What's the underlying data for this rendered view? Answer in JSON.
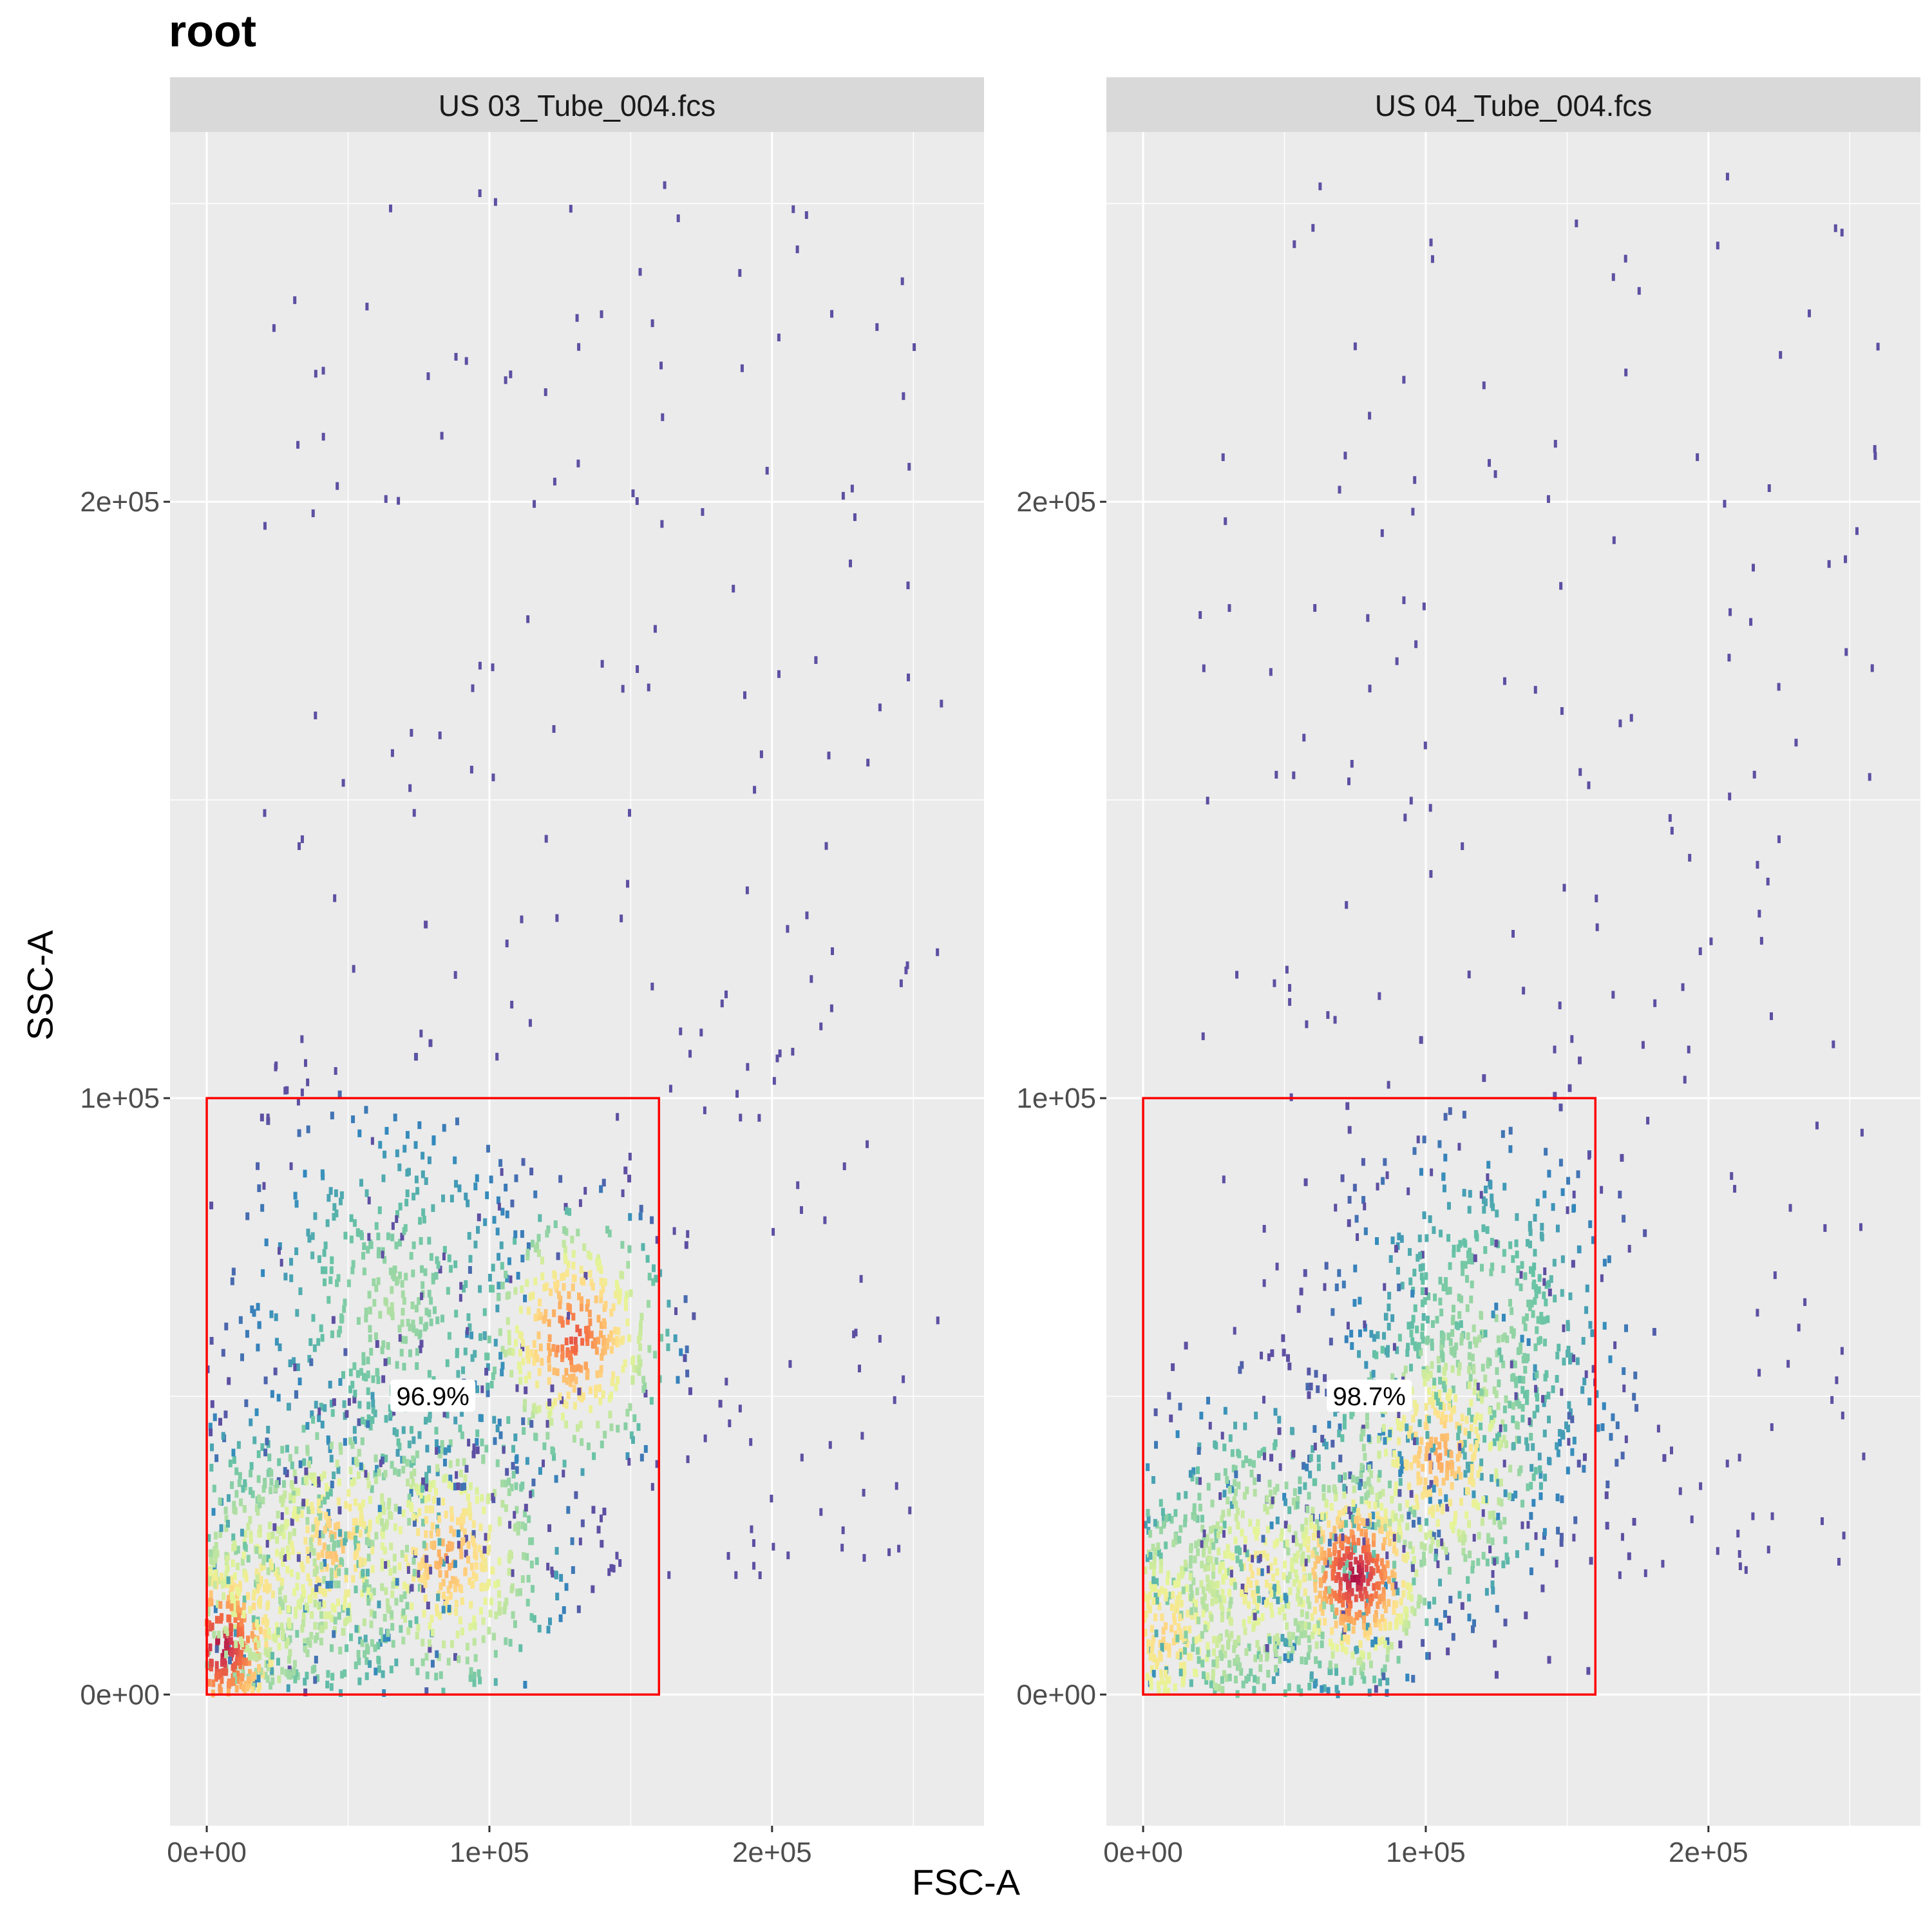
{
  "chart_data": {
    "type": "scatter",
    "title": "root",
    "xlabel": "FSC-A",
    "ylabel": "SSC-A",
    "xlim": [
      -13000,
      275000
    ],
    "ylim": [
      -22000,
      262000
    ],
    "x_ticks": [
      0,
      100000,
      200000
    ],
    "x_tick_labels": [
      "0e+00",
      "1e+05",
      "2e+05"
    ],
    "y_ticks": [
      0,
      100000,
      200000
    ],
    "y_tick_labels": [
      "0e+00",
      "1e+05",
      "2e+05"
    ],
    "grid": true,
    "colormap": "Spectral (density, low=#5E4FA2 to high=#9E0142)",
    "panels": [
      {
        "strip_label": "US 03_Tube_004.fcs",
        "gate": {
          "x_range": [
            0,
            160000
          ],
          "y_range": [
            0,
            100000
          ],
          "percent_label": "96.9%",
          "label_position": [
            80000,
            50000
          ]
        },
        "density_peaks": [
          {
            "x": 5000,
            "y": 8000,
            "weight": 1.0
          },
          {
            "x": 20000,
            "y": 18000,
            "weight": 0.55
          },
          {
            "x": 45000,
            "y": 25000,
            "weight": 0.65
          },
          {
            "x": 85000,
            "y": 23000,
            "weight": 0.7
          },
          {
            "x": 130000,
            "y": 60000,
            "weight": 0.85
          },
          {
            "x": 65000,
            "y": 65000,
            "weight": 0.35
          }
        ]
      },
      {
        "strip_label": "US 04_Tube_004.fcs",
        "gate": {
          "x_range": [
            0,
            160000
          ],
          "y_range": [
            0,
            100000
          ],
          "percent_label": "98.7%",
          "label_position": [
            80000,
            50000
          ]
        },
        "density_peaks": [
          {
            "x": 8000,
            "y": 10000,
            "weight": 0.6
          },
          {
            "x": 40000,
            "y": 20000,
            "weight": 0.55
          },
          {
            "x": 75000,
            "y": 20000,
            "weight": 1.0
          },
          {
            "x": 105000,
            "y": 40000,
            "weight": 0.7
          },
          {
            "x": 120000,
            "y": 60000,
            "weight": 0.35
          }
        ]
      }
    ]
  },
  "colors": {
    "panel_background": "#EBEBEB",
    "strip_background": "#D9D9D9",
    "grid_major": "#FFFFFF",
    "gate_stroke": "#FF0000",
    "tick_text": "#4D4D4D"
  }
}
